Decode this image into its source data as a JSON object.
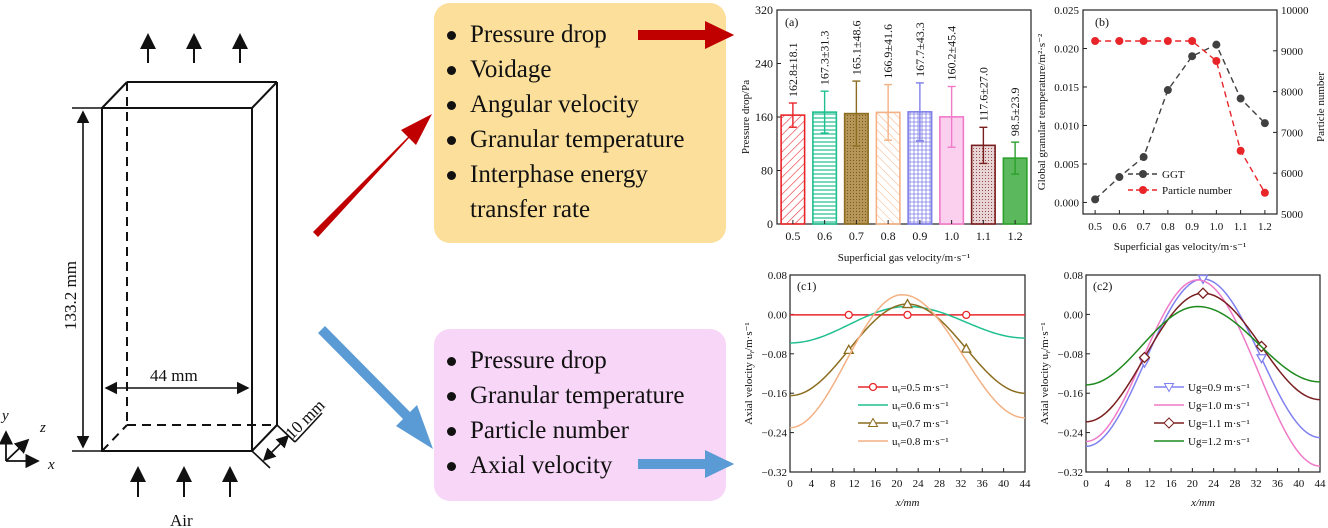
{
  "schematic": {
    "height_label": "133.2 mm",
    "width_label": "44 mm",
    "depth_label": "10 mm",
    "inlet_label": "Air",
    "axis_labels": {
      "x": "x",
      "y": "y",
      "z": "z"
    }
  },
  "boxes": {
    "upper": {
      "color": "#fbdf9a",
      "arrow_color": "#c00000",
      "items": [
        "Pressure drop",
        "Voidage",
        "Angular velocity",
        "Granular temperature",
        "Interphase energy",
        "transfer rate"
      ]
    },
    "lower": {
      "color": "#f8d6f8",
      "arrow_color": "#5b9bd5",
      "items": [
        "Pressure drop",
        "Granular temperature",
        "Particle number",
        "Axial velocity"
      ]
    }
  },
  "chart_data": [
    {
      "id": "a",
      "panel_label": "(a)",
      "type": "bar",
      "categories": [
        "0.5",
        "0.6",
        "0.7",
        "0.8",
        "0.9",
        "1.0",
        "1.1",
        "1.2"
      ],
      "values": [
        162.8,
        167.3,
        165.1,
        166.9,
        167.7,
        160.2,
        117.6,
        98.5
      ],
      "errors": [
        18.1,
        31.3,
        48.6,
        41.6,
        43.3,
        45.4,
        27.0,
        23.9
      ],
      "data_labels": [
        "162.8±18.1",
        "167.3±31.3",
        "165.1±48.6",
        "166.9±41.6",
        "167.7±43.3",
        "160.2±45.4",
        "117.6±27.0",
        "98.5±23.9"
      ],
      "colors": [
        "#e8262a",
        "#1fbf8f",
        "#8c6d1f",
        "#f4b183",
        "#7f7fe8",
        "#f07ac8",
        "#7a1f1f",
        "#2ca02c"
      ],
      "title": "",
      "xlabel": "Superficial gas velocity/m·s⁻¹",
      "ylabel": "Pressure drop/Pa",
      "ylim": [
        0,
        320
      ],
      "yticks": [
        "0",
        "80",
        "160",
        "240",
        "320"
      ],
      "grid": false
    },
    {
      "id": "b",
      "panel_label": "(b)",
      "type": "line",
      "x": [
        0.5,
        0.6,
        0.7,
        0.8,
        0.9,
        1.0,
        1.1,
        1.2
      ],
      "xticks": [
        "0.5",
        "0.6",
        "0.7",
        "0.8",
        "0.9",
        "1.0",
        "1.1",
        "1.2"
      ],
      "series": [
        {
          "name": "GGT",
          "axis": "left",
          "color": "#404040",
          "values": [
            0.0004,
            0.0033,
            0.0059,
            0.0146,
            0.019,
            0.0205,
            0.0135,
            0.0103
          ]
        },
        {
          "name": "Particle number",
          "axis": "right",
          "color": "#e8262a",
          "values": [
            9240,
            9240,
            9240,
            9240,
            9240,
            8750,
            6550,
            5520
          ]
        }
      ],
      "xlabel": "Superficial gas velocity/m·s⁻¹",
      "ylabel_left": "Global granular temperature/m²·s⁻²",
      "ylabel_right": "Particle number",
      "ylim_left": [
        -0.0015,
        0.025
      ],
      "yticks_left": [
        "0.000",
        "0.005",
        "0.010",
        "0.015",
        "0.020",
        "0.025"
      ],
      "ylim_right": [
        5000,
        10000
      ],
      "yticks_right": [
        "5000",
        "6000",
        "7000",
        "8000",
        "9000",
        "10000"
      ],
      "xlim": [
        0.45,
        1.25
      ],
      "legend": "bottom-center"
    },
    {
      "id": "c1",
      "panel_label": "(c1)",
      "type": "line",
      "xlabel": "x/mm",
      "ylabel": "Axial velocity u_y/m·s⁻¹",
      "xlim": [
        0,
        44
      ],
      "ylim": [
        -0.32,
        0.08
      ],
      "xticks": [
        "0",
        "4",
        "8",
        "12",
        "16",
        "20",
        "24",
        "28",
        "32",
        "36",
        "40",
        "44"
      ],
      "yticks": [
        "-0.32",
        "-0.24",
        "-0.16",
        "-0.08",
        "0.00",
        "0.08"
      ],
      "series": [
        {
          "name": "u_y=0.5 m·s⁻¹",
          "color": "#e8262a",
          "marker": "circle",
          "center": -0.001,
          "edge": -0.001,
          "peak_x": 22
        },
        {
          "name": "u_y=0.6 m·s⁻¹",
          "color": "#1fbf8f",
          "marker": "none",
          "center": 0.016,
          "edge": -0.058,
          "edge_right": -0.048,
          "peak_x": 22
        },
        {
          "name": "u_y=0.7 m·s⁻¹",
          "color": "#8c6d1f",
          "marker": "triangle",
          "center": 0.021,
          "edge": -0.165,
          "edge_right": -0.16,
          "peak_x": 22
        },
        {
          "name": "u_y=0.8 m·s⁻¹",
          "color": "#f4b183",
          "marker": "none",
          "center": 0.04,
          "edge": -0.23,
          "edge_right": -0.21,
          "peak_x": 21
        }
      ],
      "legend": "bottom-center"
    },
    {
      "id": "c2",
      "panel_label": "(c2)",
      "type": "line",
      "xlabel": "x/mm",
      "ylabel": "Axial velocity u_y/m·s⁻¹",
      "xlim": [
        0,
        44
      ],
      "ylim": [
        -0.32,
        0.08
      ],
      "xticks": [
        "0",
        "4",
        "8",
        "12",
        "16",
        "20",
        "24",
        "28",
        "32",
        "36",
        "40",
        "44"
      ],
      "yticks": [
        "-0.32",
        "-0.24",
        "-0.16",
        "-0.08",
        "0.00",
        "0.08"
      ],
      "series": [
        {
          "name": "U_g=0.9 m·s⁻¹",
          "color": "#8080f0",
          "marker": "triangle-down",
          "center": 0.072,
          "edge": -0.268,
          "edge_right": -0.25,
          "peak_x": 22
        },
        {
          "name": "U_g=1.0 m·s⁻¹",
          "color": "#f07ac8",
          "marker": "none",
          "center": 0.07,
          "edge": -0.258,
          "edge_right": -0.308,
          "peak_x": 21
        },
        {
          "name": "U_g=1.1 m·s⁻¹",
          "color": "#7a1f1f",
          "marker": "diamond",
          "center": 0.043,
          "edge": -0.218,
          "edge_right": -0.173,
          "peak_x": 22
        },
        {
          "name": "U_g=1.2 m·s⁻¹",
          "color": "#1e8a1e",
          "marker": "none",
          "center": 0.016,
          "edge": -0.143,
          "edge_right": -0.137,
          "peak_x": 21
        }
      ],
      "legend": "bottom-center"
    }
  ]
}
